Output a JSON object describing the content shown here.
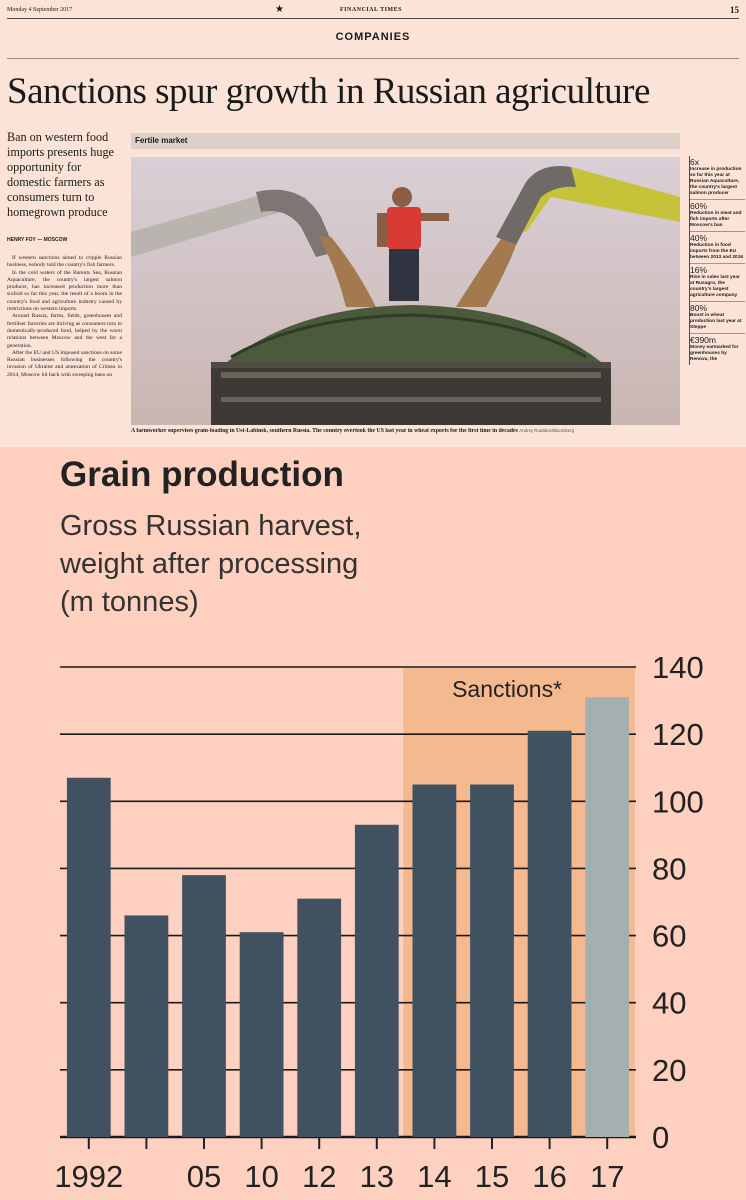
{
  "newspaper": {
    "date": "Monday 4 September 2017",
    "masthead": "FINANCIAL TIMES",
    "page_number": "15",
    "section": "COMPANIES",
    "headline": "Sanctions spur growth in Russian agriculture",
    "standfirst": "Ban on western food imports presents huge opportunity for domestic farmers as consumers turn to homegrown produce",
    "byline": "HENRY FOY — MOSCOW",
    "body": [
      "If western sanctions aimed to cripple Russian business, nobody told the country's fish farmers.",
      "In the cold waters of the Barents Sea, Russian Aquaculture, the country's largest salmon producer, has increased production more than sixfold so far this year, the result of a boom in the country's food and agriculture industry caused by restrictions on western imports.",
      "Around Russia, farms, fields, greenhouses and fertiliser factories are thriving as consumers turn to domestically-produced food, helped by the worst relations between Moscow and the west for a generation.",
      "After the EU and US imposed sanctions on some Russian businesses following the country's invasion of Ukraine and annexation of Crimea in 2014, Moscow hit back with sweeping bans on"
    ],
    "figure_title": "Fertile market",
    "caption": "A farmworker supervises grain-loading in Ust-Labinsk, southern Russia. The country overtook the US last year in wheat exports for the first time in decades",
    "photo_credit": "Andrey Rudakov/Bloomberg",
    "facts": [
      {
        "value": "6x",
        "text": "Increase in production so far this year at Russian Aquaculture, the country's largest salmon producer"
      },
      {
        "value": "60%",
        "text": "Reduction in meat and fish imports after Moscow's ban"
      },
      {
        "value": "40%",
        "text": "Reduction in food imports from the EU between 2013 and 2016"
      },
      {
        "value": "16%",
        "text": "Rise in sales last year at Rusagro, the country's largest agriculture company"
      },
      {
        "value": "80%",
        "text": "Boost in wheat production last year at Steppe"
      },
      {
        "value": "€390m",
        "text": "Money earmarked for greenhouses by Renova, the"
      }
    ]
  },
  "chart_data": {
    "type": "bar",
    "title": "Grain production",
    "subtitle": [
      "Gross Russian harvest,",
      "weight after processing",
      "(m tonnes)"
    ],
    "categories": [
      "1992",
      "",
      "05",
      "10",
      "12",
      "13",
      "14",
      "15",
      "16",
      "17"
    ],
    "values": [
      107,
      66,
      78,
      61,
      71,
      93,
      105,
      105,
      121,
      131
    ],
    "highlight_last": true,
    "ylim": [
      0,
      140
    ],
    "yticks": [
      0,
      20,
      40,
      60,
      80,
      100,
      120,
      140
    ],
    "y_axis_side": "right",
    "grid": true,
    "shaded_region": {
      "label": "Sanctions*",
      "from_category": "14",
      "to_category": "17"
    },
    "colors": {
      "bar": "#405162",
      "bar_forecast": "#a4b0b0",
      "background": "#fdd0bf",
      "sanctions": "#f5b98f",
      "grid": "#1a1a1a"
    }
  }
}
